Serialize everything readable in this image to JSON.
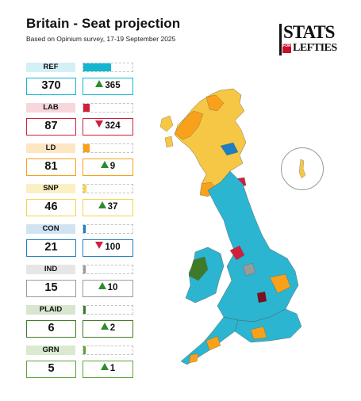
{
  "title": "Britain - Seat projection",
  "subtitle": "Based on Opinium survey, 17-19 September 2025",
  "logo": {
    "line1": "STATS",
    "line2": "FOR",
    "line3": "LEFTIES"
  },
  "chart_data": {
    "type": "table",
    "columns": [
      "party",
      "seats",
      "change"
    ],
    "parties": [
      {
        "name": "REF",
        "seats": "370",
        "change": "365",
        "direction": "up",
        "color": "#12b6cf",
        "label_bg": "#d4f0f7"
      },
      {
        "name": "LAB",
        "seats": "87",
        "change": "324",
        "direction": "down",
        "color": "#d1203c",
        "label_bg": "#f7d7dc"
      },
      {
        "name": "LD",
        "seats": "81",
        "change": "9",
        "direction": "up",
        "color": "#f9a11b",
        "label_bg": "#fde6c2"
      },
      {
        "name": "SNP",
        "seats": "46",
        "change": "37",
        "direction": "up",
        "color": "#f6d34b",
        "label_bg": "#fbf0c4"
      },
      {
        "name": "CON",
        "seats": "21",
        "change": "100",
        "direction": "down",
        "color": "#1c7ec4",
        "label_bg": "#cfe3f3"
      },
      {
        "name": "IND",
        "seats": "15",
        "change": "10",
        "direction": "up",
        "color": "#9a9a9a",
        "label_bg": "#e6e6e6"
      },
      {
        "name": "PLAID",
        "seats": "6",
        "change": "2",
        "direction": "up",
        "color": "#3f7a2a",
        "label_bg": "#d9e6cf"
      },
      {
        "name": "GRN",
        "seats": "5",
        "change": "1",
        "direction": "up",
        "color": "#5aa63c",
        "label_bg": "#d9ead0"
      }
    ],
    "seat_scale_max": 650
  }
}
